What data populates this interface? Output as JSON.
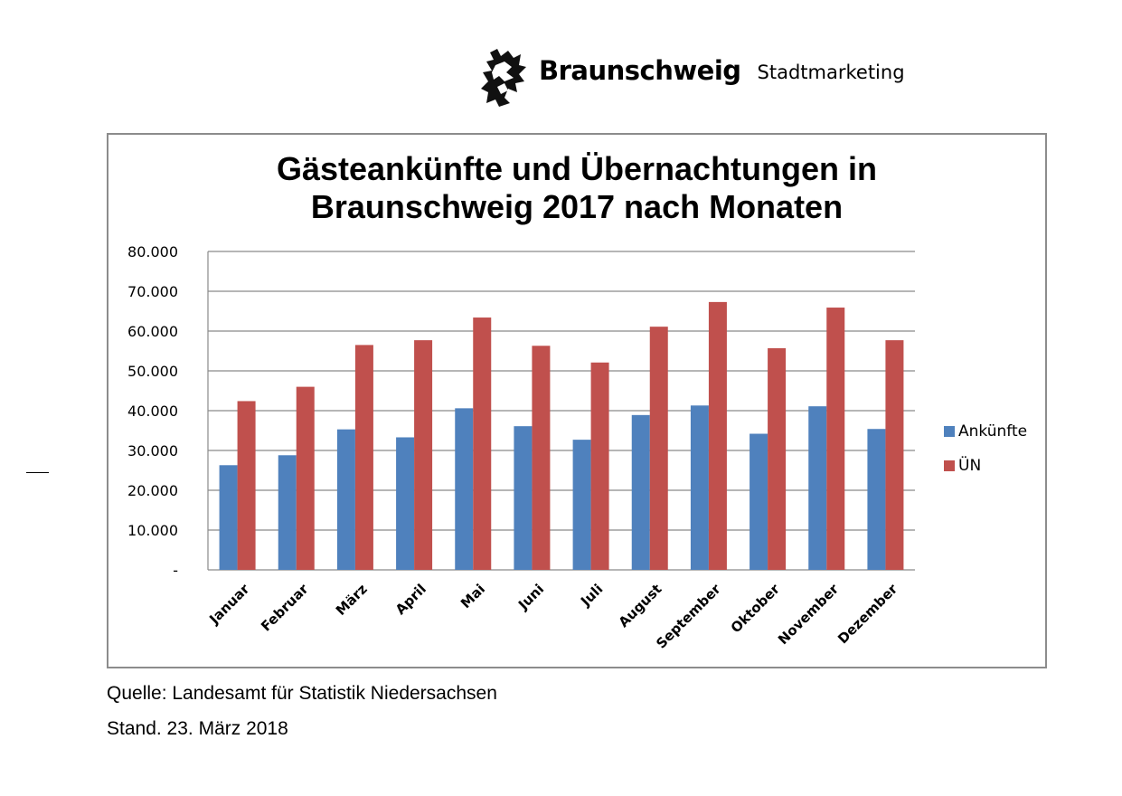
{
  "header": {
    "logo_name": "Braunschweig",
    "logo_sub": "Stadtmarketing"
  },
  "footer": {
    "source": "Quelle: Landesamt für Statistik Niedersachsen",
    "date": "Stand. 23. März 2018"
  },
  "chart_data": {
    "type": "bar",
    "title": [
      "Gästeankünfte und Übernachtungen in",
      "Braunschweig 2017 nach Monaten"
    ],
    "categories": [
      "Januar",
      "Februar",
      "März",
      "April",
      "Mai",
      "Juni",
      "Juli",
      "August",
      "September",
      "Oktober",
      "November",
      "Dezember"
    ],
    "series": [
      {
        "name": "Ankünfte",
        "color": "#4f81bd",
        "values": [
          26300,
          28800,
          35300,
          33300,
          40600,
          36100,
          32700,
          38900,
          41300,
          34200,
          41100,
          35400
        ]
      },
      {
        "name": "ÜN",
        "color": "#c0504d",
        "values": [
          42400,
          46000,
          56500,
          57700,
          63400,
          56300,
          52100,
          61100,
          67300,
          55700,
          65900,
          57700
        ]
      }
    ],
    "ylim": [
      0,
      80000
    ],
    "yticks": [
      0,
      10000,
      20000,
      30000,
      40000,
      50000,
      60000,
      70000,
      80000
    ],
    "ytick_labels": [
      "-",
      "10.000",
      "20.000",
      "30.000",
      "40.000",
      "50.000",
      "60.000",
      "70.000",
      "80.000"
    ],
    "grid": true,
    "legend_position": "right"
  }
}
